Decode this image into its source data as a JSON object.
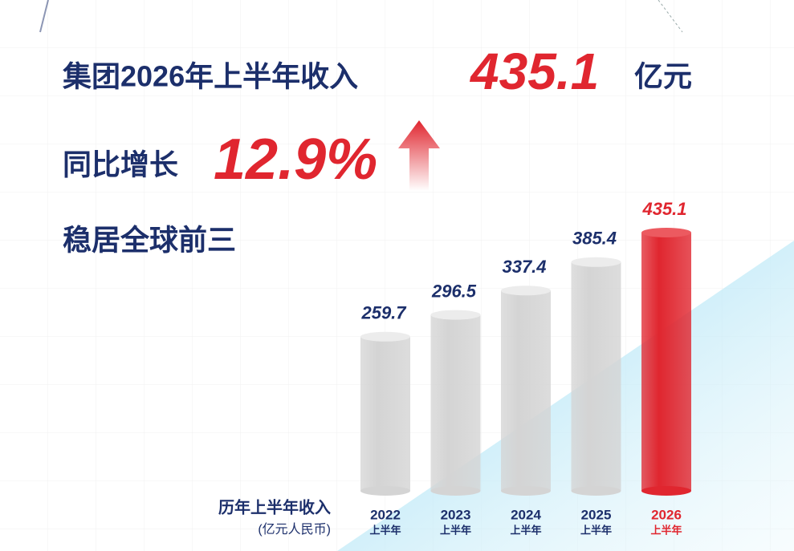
{
  "chart_data": {
    "type": "bar",
    "headline": {
      "prefix": "集团2026年上半年收入",
      "value": "435.1",
      "unit": "亿元"
    },
    "growth": {
      "label": "同比增长",
      "value": "12.9%"
    },
    "tagline": "稳居全球前三",
    "y_label": "历年上半年收入",
    "y_unit": "(亿元人民币)",
    "categories": [
      "2022",
      "2023",
      "2024",
      "2025",
      "2026"
    ],
    "period": "上半年",
    "values": [
      259.7,
      296.5,
      337.4,
      385.4,
      435.1
    ],
    "color": "#d4d4d4",
    "label_color": "#1c2f6b",
    "highlight_color": "#e0262f",
    "highlight_index": 4
  }
}
